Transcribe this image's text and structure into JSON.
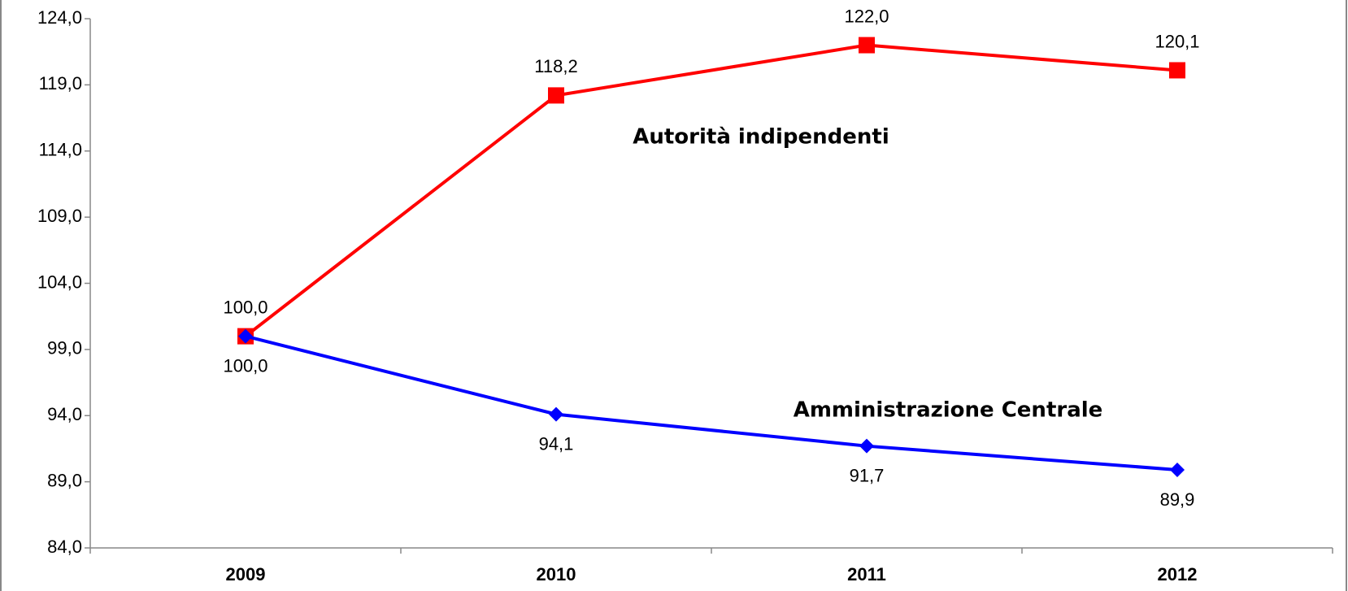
{
  "chart_data": {
    "type": "line",
    "categories": [
      "2009",
      "2010",
      "2011",
      "2012"
    ],
    "series": [
      {
        "name": "Autorità indipendenti",
        "color": "#ff0000",
        "marker": "square",
        "values": [
          100.0,
          118.2,
          122.0,
          120.1
        ],
        "value_labels": [
          "100,0",
          "118,2",
          "122,0",
          "120,1"
        ]
      },
      {
        "name": "Amministrazione Centrale",
        "color": "#0000ff",
        "marker": "diamond",
        "values": [
          100.0,
          94.1,
          91.7,
          89.9
        ],
        "value_labels": [
          "100,0",
          "94,1",
          "91,7",
          "89,9"
        ]
      }
    ],
    "ylim": [
      84,
      124
    ],
    "yticks": [
      {
        "value": 84,
        "label": "84,0"
      },
      {
        "value": 89,
        "label": "89,0"
      },
      {
        "value": 94,
        "label": "94,0"
      },
      {
        "value": 99,
        "label": "99,0"
      },
      {
        "value": 104,
        "label": "104,0"
      },
      {
        "value": 109,
        "label": "109,0"
      },
      {
        "value": 114,
        "label": "114,0"
      },
      {
        "value": 119,
        "label": "119,0"
      },
      {
        "value": 124,
        "label": "124,0"
      }
    ],
    "grid": false
  }
}
